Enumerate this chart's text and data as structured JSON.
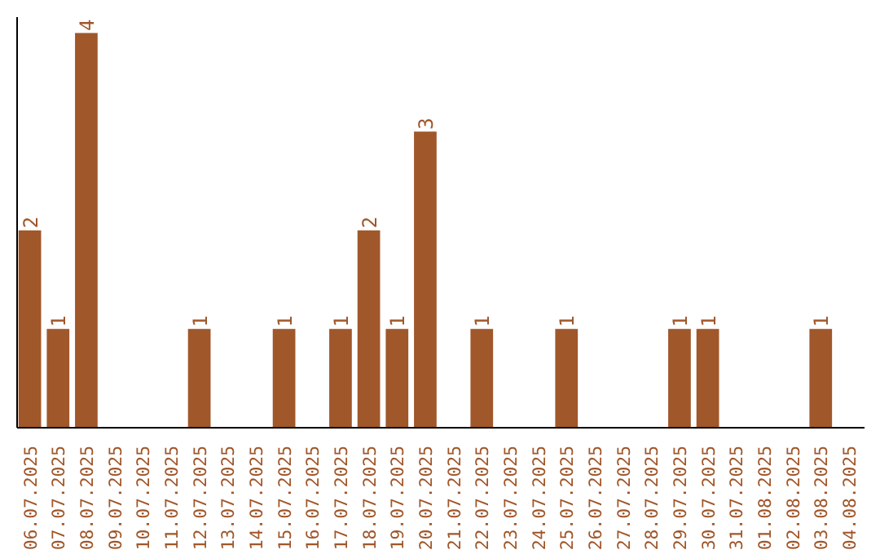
{
  "chart_data": {
    "type": "bar",
    "categories": [
      "06.07.2025",
      "07.07.2025",
      "08.07.2025",
      "09.07.2025",
      "10.07.2025",
      "11.07.2025",
      "12.07.2025",
      "13.07.2025",
      "14.07.2025",
      "15.07.2025",
      "16.07.2025",
      "17.07.2025",
      "18.07.2025",
      "19.07.2025",
      "20.07.2025",
      "21.07.2025",
      "22.07.2025",
      "23.07.2025",
      "24.07.2025",
      "25.07.2025",
      "26.07.2025",
      "27.07.2025",
      "28.07.2025",
      "29.07.2025",
      "30.07.2025",
      "31.07.2025",
      "01.08.2025",
      "02.08.2025",
      "03.08.2025",
      "04.08.2025"
    ],
    "values": [
      2,
      1,
      4,
      0,
      0,
      0,
      1,
      0,
      0,
      1,
      0,
      1,
      2,
      1,
      3,
      0,
      1,
      0,
      0,
      1,
      0,
      0,
      0,
      1,
      1,
      0,
      0,
      0,
      1,
      0
    ],
    "value_labels": [
      "2",
      "1",
      "4",
      null,
      null,
      null,
      "1",
      null,
      null,
      "1",
      null,
      "1",
      "2",
      "1",
      "3",
      null,
      "1",
      null,
      null,
      "1",
      null,
      null,
      null,
      "1",
      "1",
      null,
      null,
      null,
      "1",
      null
    ],
    "color": "#a0572a",
    "grid": false,
    "tick_labels": "x"
  }
}
